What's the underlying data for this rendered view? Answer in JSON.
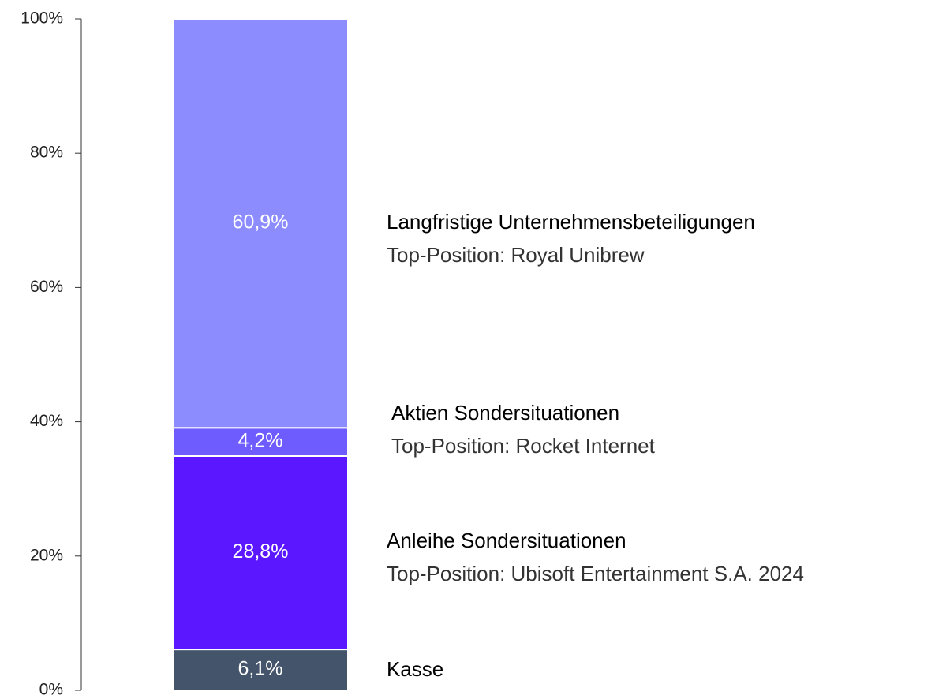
{
  "chart_data": {
    "type": "stacked-bar",
    "categories": [
      null
    ],
    "series": [
      {
        "name": "Kasse",
        "color": "#44546a",
        "values": [
          6.1
        ],
        "value_labels": [
          "6,1%"
        ]
      },
      {
        "name": "Anleihe Sondersituationen",
        "color": "#5b17ff",
        "values": [
          28.8
        ],
        "value_labels": [
          "28,8%"
        ],
        "top_position": "Top-Position: Ubisoft Entertainment S.A. 2024"
      },
      {
        "name": "Aktien Sondersituationen",
        "color": "#6e5cff",
        "values": [
          4.2
        ],
        "value_labels": [
          "4,2%"
        ],
        "top_position": "Top-Position: Rocket Internet"
      },
      {
        "name": "Langfristige Unternehmensbeteiligungen",
        "color": "#8c8cff",
        "values": [
          60.9
        ],
        "value_labels": [
          "60,9%"
        ],
        "top_position": "Top-Position: Royal Unibrew"
      }
    ],
    "ylim": [
      0,
      100
    ],
    "yticks": [
      {
        "value": 0,
        "label": "0%"
      },
      {
        "value": 20,
        "label": "20%"
      },
      {
        "value": 40,
        "label": "40%"
      },
      {
        "value": 60,
        "label": "60%"
      },
      {
        "value": 80,
        "label": "80%"
      },
      {
        "value": 100,
        "label": "100%"
      }
    ]
  }
}
